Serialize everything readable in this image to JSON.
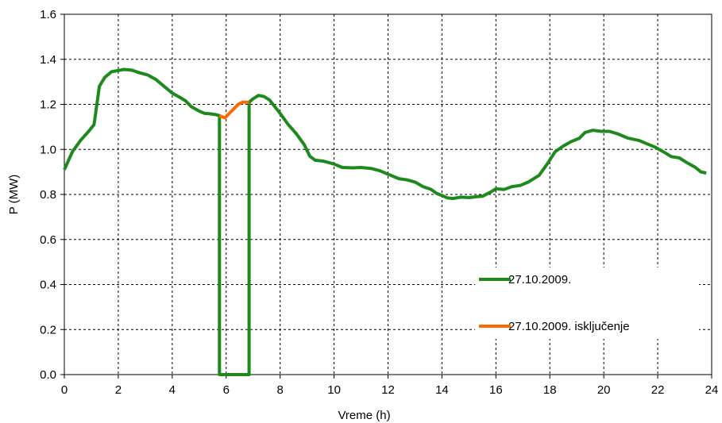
{
  "chart_data": {
    "type": "line",
    "xlabel": "Vreme (h)",
    "ylabel": "P (MW)",
    "xlim": [
      0,
      24
    ],
    "ylim": [
      0,
      1.6
    ],
    "x_ticks": [
      "0",
      "2",
      "4",
      "6",
      "8",
      "10",
      "12",
      "14",
      "16",
      "18",
      "20",
      "22",
      "24"
    ],
    "y_ticks": [
      "0.0",
      "0.2",
      "0.4",
      "0.6",
      "0.8",
      "1.0",
      "1.2",
      "1.4",
      "1.6"
    ],
    "grid": true,
    "legend_position": "right",
    "series": [
      {
        "name": "27.10.2009.",
        "color": "#1e8a1e",
        "points": [
          [
            0.0,
            0.91
          ],
          [
            0.3,
            0.99
          ],
          [
            0.6,
            1.04
          ],
          [
            0.9,
            1.08
          ],
          [
            1.1,
            1.11
          ],
          [
            1.3,
            1.28
          ],
          [
            1.5,
            1.32
          ],
          [
            1.75,
            1.345
          ],
          [
            2.0,
            1.35
          ],
          [
            2.2,
            1.355
          ],
          [
            2.5,
            1.352
          ],
          [
            2.8,
            1.34
          ],
          [
            3.1,
            1.33
          ],
          [
            3.4,
            1.31
          ],
          [
            3.7,
            1.28
          ],
          [
            4.0,
            1.25
          ],
          [
            4.3,
            1.23
          ],
          [
            4.5,
            1.215
          ],
          [
            4.7,
            1.19
          ],
          [
            5.0,
            1.17
          ],
          [
            5.2,
            1.16
          ],
          [
            5.4,
            1.158
          ],
          [
            5.6,
            1.155
          ],
          [
            5.75,
            1.15
          ],
          [
            5.75,
            0.0
          ],
          [
            6.85,
            0.0
          ],
          [
            6.85,
            1.21
          ],
          [
            7.0,
            1.225
          ],
          [
            7.2,
            1.24
          ],
          [
            7.4,
            1.235
          ],
          [
            7.6,
            1.22
          ],
          [
            7.8,
            1.19
          ],
          [
            8.0,
            1.16
          ],
          [
            8.3,
            1.11
          ],
          [
            8.6,
            1.07
          ],
          [
            8.9,
            1.02
          ],
          [
            9.1,
            0.97
          ],
          [
            9.3,
            0.952
          ],
          [
            9.6,
            0.948
          ],
          [
            10.0,
            0.935
          ],
          [
            10.3,
            0.92
          ],
          [
            10.7,
            0.918
          ],
          [
            11.0,
            0.92
          ],
          [
            11.4,
            0.915
          ],
          [
            11.7,
            0.905
          ],
          [
            12.0,
            0.89
          ],
          [
            12.4,
            0.87
          ],
          [
            12.7,
            0.865
          ],
          [
            13.0,
            0.855
          ],
          [
            13.3,
            0.835
          ],
          [
            13.6,
            0.822
          ],
          [
            13.8,
            0.805
          ],
          [
            14.0,
            0.795
          ],
          [
            14.2,
            0.785
          ],
          [
            14.4,
            0.782
          ],
          [
            14.7,
            0.788
          ],
          [
            15.0,
            0.786
          ],
          [
            15.3,
            0.79
          ],
          [
            15.5,
            0.792
          ],
          [
            15.8,
            0.81
          ],
          [
            16.0,
            0.825
          ],
          [
            16.3,
            0.822
          ],
          [
            16.6,
            0.835
          ],
          [
            16.9,
            0.84
          ],
          [
            17.2,
            0.855
          ],
          [
            17.6,
            0.885
          ],
          [
            17.9,
            0.935
          ],
          [
            18.2,
            0.99
          ],
          [
            18.5,
            1.015
          ],
          [
            18.8,
            1.035
          ],
          [
            19.1,
            1.05
          ],
          [
            19.3,
            1.075
          ],
          [
            19.6,
            1.085
          ],
          [
            19.9,
            1.08
          ],
          [
            20.2,
            1.08
          ],
          [
            20.5,
            1.07
          ],
          [
            20.9,
            1.05
          ],
          [
            21.3,
            1.04
          ],
          [
            21.6,
            1.025
          ],
          [
            21.9,
            1.01
          ],
          [
            22.2,
            0.99
          ],
          [
            22.5,
            0.968
          ],
          [
            22.8,
            0.962
          ],
          [
            23.1,
            0.94
          ],
          [
            23.4,
            0.92
          ],
          [
            23.6,
            0.9
          ],
          [
            23.8,
            0.895
          ]
        ]
      },
      {
        "name": "27.10.2009. isključenje",
        "color": "#ff6a00",
        "points": [
          [
            5.75,
            1.15
          ],
          [
            5.95,
            1.14
          ],
          [
            6.2,
            1.17
          ],
          [
            6.45,
            1.2
          ],
          [
            6.6,
            1.21
          ],
          [
            6.85,
            1.21
          ]
        ]
      }
    ]
  }
}
